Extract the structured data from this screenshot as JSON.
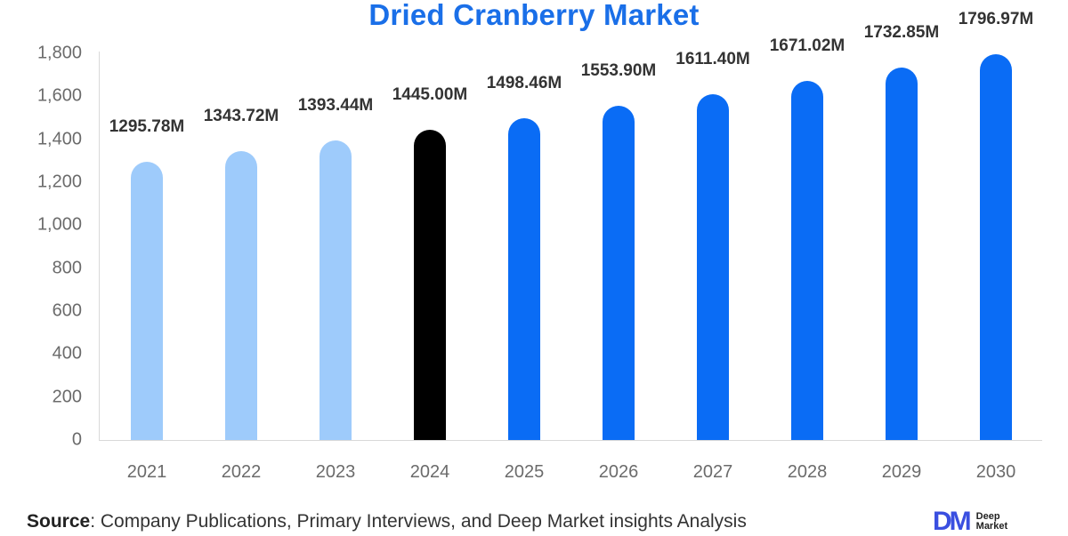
{
  "title": "Dried Cranberry Market",
  "chart_data": {
    "type": "bar",
    "title": "Dried Cranberry Market",
    "xlabel": "",
    "ylabel": "",
    "ylim": [
      0,
      1800
    ],
    "yticks": [
      0,
      200,
      400,
      600,
      800,
      1000,
      1200,
      1400,
      1600,
      1800
    ],
    "ytick_labels": [
      "0",
      "200",
      "400",
      "600",
      "800",
      "1,000",
      "1,200",
      "1,400",
      "1,600",
      "1,800"
    ],
    "categories": [
      "2021",
      "2022",
      "2023",
      "2024",
      "2025",
      "2026",
      "2027",
      "2028",
      "2029",
      "2030"
    ],
    "values": [
      1295.78,
      1343.72,
      1393.44,
      1445.0,
      1498.46,
      1553.9,
      1611.4,
      1671.02,
      1732.85,
      1796.97
    ],
    "value_labels": [
      "1295.78M",
      "1343.72M",
      "1393.44M",
      "1445.00M",
      "1498.46M",
      "1553.90M",
      "1611.40M",
      "1671.02M",
      "1732.85M",
      "1796.97M"
    ],
    "bar_colors": [
      "#9ecbfb",
      "#9ecbfb",
      "#9ecbfb",
      "#000000",
      "#0a6cf5",
      "#0a6cf5",
      "#0a6cf5",
      "#0a6cf5",
      "#0a6cf5",
      "#0a6cf5"
    ],
    "grid": false,
    "legend": null
  },
  "source": {
    "prefix": "Source",
    "text": ": Company Publications, Primary Interviews, and Deep Market insights Analysis"
  },
  "logo": {
    "mark": "DM",
    "line1": "Deep",
    "line2": "Market"
  },
  "colors": {
    "title": "#1a6fe8",
    "historical": "#9ecbfb",
    "base_year": "#000000",
    "forecast": "#0a6cf5"
  }
}
